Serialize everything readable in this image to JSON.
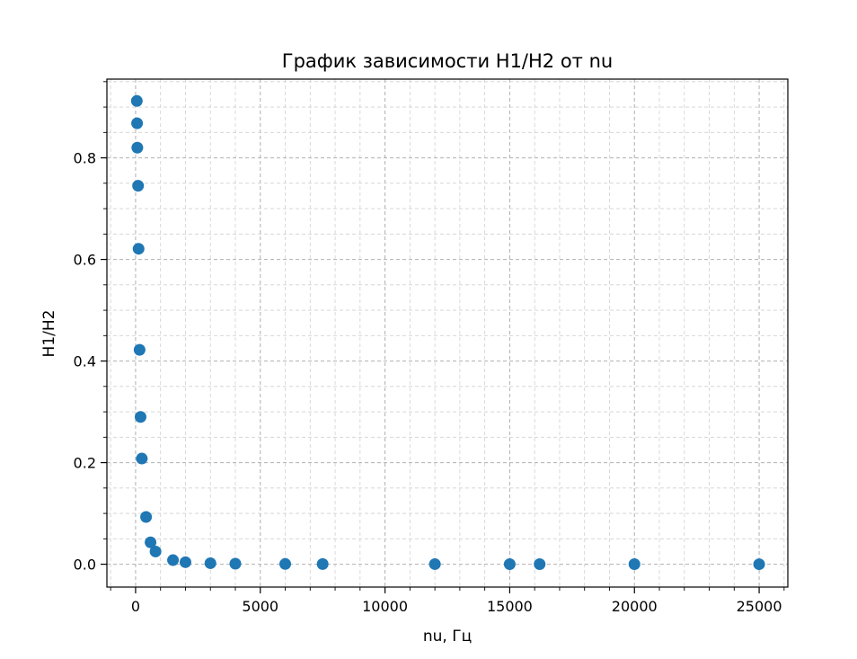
{
  "chart_data": {
    "type": "scatter",
    "title": "График зависимости H1/H2 от nu",
    "xlabel": "nu, Гц",
    "ylabel": "H1/H2",
    "xlim": [
      -1150,
      26150
    ],
    "ylim": [
      -0.045,
      0.955
    ],
    "xticks": [
      0,
      5000,
      10000,
      15000,
      20000,
      25000
    ],
    "xtick_labels": [
      "0",
      "5000",
      "10000",
      "15000",
      "20000",
      "25000"
    ],
    "yticks": [
      0.0,
      0.2,
      0.4,
      0.6,
      0.8
    ],
    "ytick_labels": [
      "0.0",
      "0.2",
      "0.4",
      "0.6",
      "0.8"
    ],
    "x_minor_step": 1000,
    "y_minor_step": 0.05,
    "grid": true,
    "marker_color": "#1f77b4",
    "points": [
      {
        "x": 50,
        "y": 0.912
      },
      {
        "x": 60,
        "y": 0.868
      },
      {
        "x": 70,
        "y": 0.82
      },
      {
        "x": 100,
        "y": 0.745
      },
      {
        "x": 120,
        "y": 0.621
      },
      {
        "x": 160,
        "y": 0.422
      },
      {
        "x": 200,
        "y": 0.29
      },
      {
        "x": 250,
        "y": 0.208
      },
      {
        "x": 420,
        "y": 0.093
      },
      {
        "x": 600,
        "y": 0.043
      },
      {
        "x": 800,
        "y": 0.025
      },
      {
        "x": 1500,
        "y": 0.008
      },
      {
        "x": 2000,
        "y": 0.004
      },
      {
        "x": 3000,
        "y": 0.002
      },
      {
        "x": 4000,
        "y": 0.001
      },
      {
        "x": 6000,
        "y": 0.0005
      },
      {
        "x": 7500,
        "y": 0.0003
      },
      {
        "x": 12000,
        "y": 0.0002
      },
      {
        "x": 15000,
        "y": 0.0001
      },
      {
        "x": 16200,
        "y": 0.0001
      },
      {
        "x": 20000,
        "y": 0.0001
      },
      {
        "x": 25000,
        "y": 0.0
      }
    ]
  }
}
